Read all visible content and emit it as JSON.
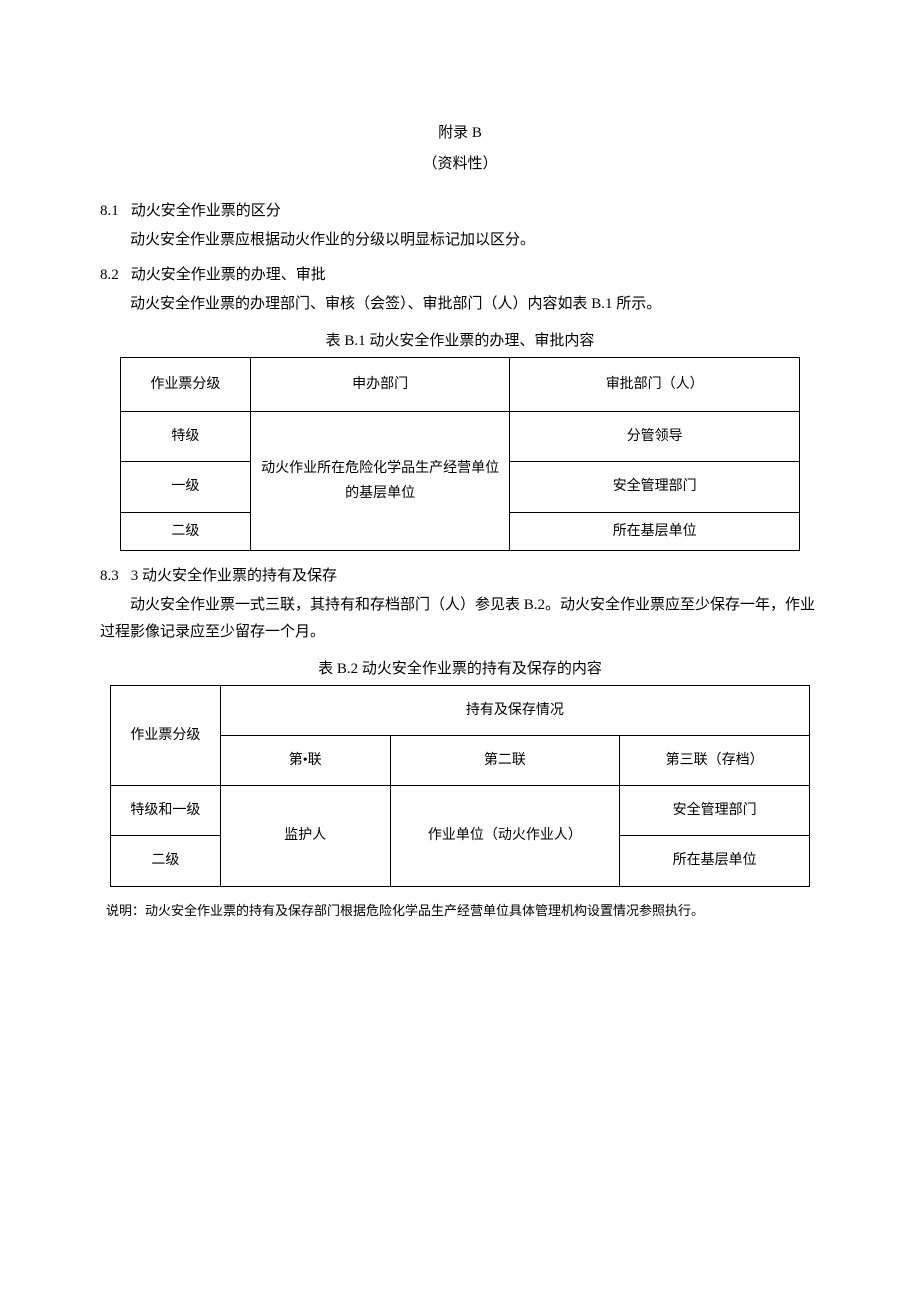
{
  "header": {
    "appendix": "附录 B",
    "informative": "（资料性）"
  },
  "sections": {
    "s81": {
      "num": "8.1",
      "title": "动火安全作业票的区分",
      "body": "动火安全作业票应根据动火作业的分级以明显标记加以区分。"
    },
    "s82": {
      "num": "8.2",
      "title": "动火安全作业票的办理、审批",
      "body": "动火安全作业票的办理部门、审核（会签）、审批部门（人）内容如表 B.1 所示。"
    },
    "s83": {
      "num": "8.3",
      "title": "3 动火安全作业票的持有及保存",
      "body": "动火安全作业票一式三联，其持有和存档部门（人）参见表 B.2。动火安全作业票应至少保存一年，作业过程影像记录应至少留存一个月。"
    }
  },
  "table1": {
    "caption": "表 B.1 动火安全作业票的办理、审批内容",
    "headers": {
      "c1": "作业票分级",
      "c2": "申办部门",
      "c3": "审批部门（人）"
    },
    "rows": {
      "r1c1": "特级",
      "r1c3": "分管领导",
      "r2c1": "一级",
      "merged_c2": "动火作业所在危险化学品生产经营单位的基层单位",
      "r2c3": "安全管理部门",
      "r3c1": "二级",
      "r3c3": "所在基层单位"
    }
  },
  "table2": {
    "caption": "表 B.2 动火安全作业票的持有及保存的内容",
    "headers": {
      "c1": "作业票分级",
      "merged_top": "持有及保存情况",
      "c2": "第•联",
      "c3": "第二联",
      "c4": "第三联（存档）"
    },
    "rows": {
      "r1c1": "特级和一级",
      "merged_c2": "监护人",
      "merged_c3": "作业单位（动火作业人）",
      "r1c4": "安全管理部门",
      "r2c1": "二级",
      "r2c4": "所在基层单位"
    }
  },
  "note": "说明：动火安全作业票的持有及保存部门根据危险化学品生产经营单位具体管理机构设置情况参照执行。"
}
